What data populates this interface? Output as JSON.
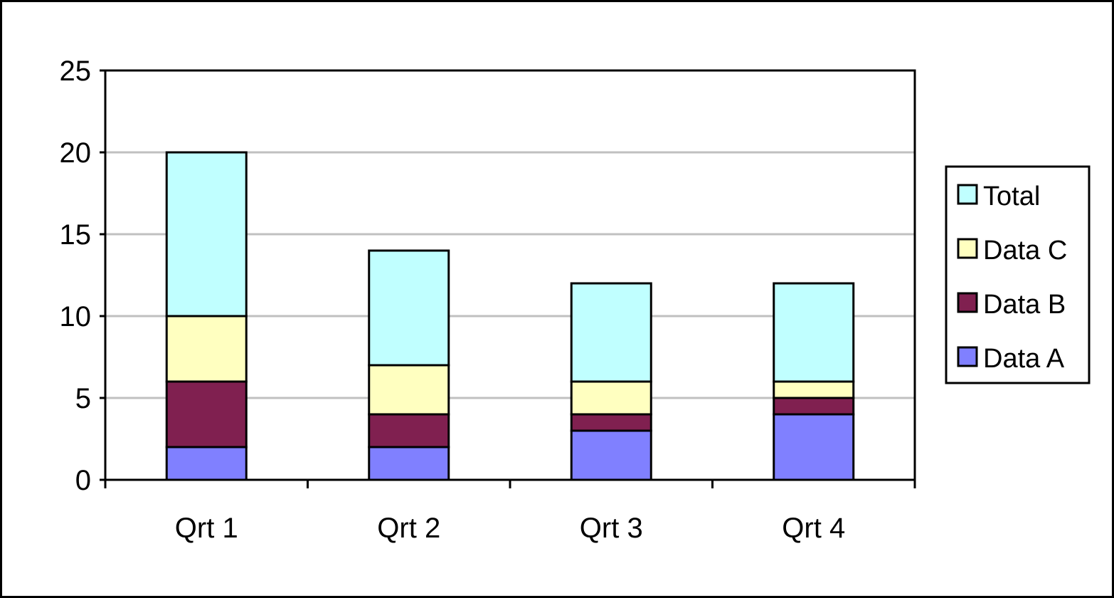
{
  "chart_data": {
    "type": "bar",
    "stacked": true,
    "categories": [
      "Qrt 1",
      "Qrt 2",
      "Qrt 3",
      "Qrt 4"
    ],
    "series": [
      {
        "name": "Data A",
        "color": "#8080ff",
        "values": [
          2,
          2,
          3,
          4
        ]
      },
      {
        "name": "Data B",
        "color": "#802050",
        "values": [
          4,
          2,
          1,
          1
        ]
      },
      {
        "name": "Data C",
        "color": "#ffffc0",
        "values": [
          4,
          3,
          2,
          1
        ]
      },
      {
        "name": "Total",
        "color": "#c0ffff",
        "values": [
          10,
          7,
          6,
          6
        ]
      }
    ],
    "ylim": [
      0,
      25
    ],
    "yticks": [
      "0",
      "5",
      "10",
      "15",
      "20",
      "25"
    ],
    "title": "",
    "xlabel": "",
    "ylabel": "",
    "grid": true,
    "gridline_color": "#c0c0c0",
    "legend": {
      "position": "right",
      "order": [
        "Total",
        "Data C",
        "Data B",
        "Data A"
      ]
    }
  }
}
